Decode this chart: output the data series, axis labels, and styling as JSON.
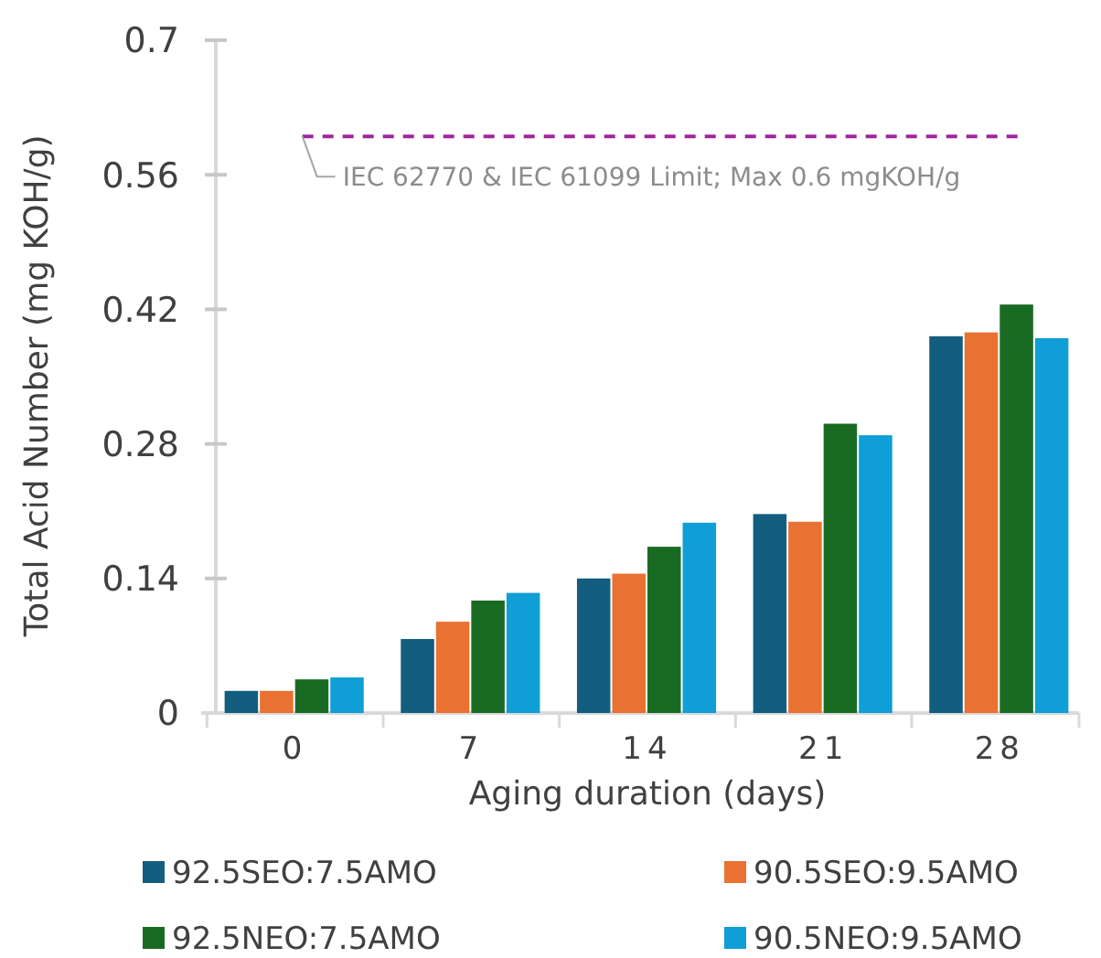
{
  "chart_data": {
    "type": "bar",
    "xlabel": "Aging duration (days)",
    "ylabel": "Total Acid Number (mg KOH/g)",
    "categories": [
      "0",
      "7",
      "14",
      "21",
      "28"
    ],
    "series": [
      {
        "name": "92.5SEO:7.5AMO",
        "color": "#135e7f",
        "values": [
          0.023,
          0.077,
          0.14,
          0.207,
          0.392
        ]
      },
      {
        "name": "90.5SEO:9.5AMO",
        "color": "#e97132",
        "values": [
          0.023,
          0.095,
          0.145,
          0.199,
          0.396
        ]
      },
      {
        "name": "92.5NEO:7.5AMO",
        "color": "#196b24",
        "values": [
          0.035,
          0.117,
          0.173,
          0.301,
          0.425
        ]
      },
      {
        "name": "90.5NEO:9.5AMO",
        "color": "#0f9ed5",
        "values": [
          0.037,
          0.125,
          0.198,
          0.289,
          0.39
        ]
      }
    ],
    "ylim": [
      0,
      0.7
    ],
    "yticks": [
      0,
      0.14,
      0.28,
      0.42,
      0.56,
      0.7
    ],
    "ref_lines": [
      {
        "axis": "y",
        "value": 0.6,
        "label": "IEC 62770 & IEC 61099 Limit; Max 0.6 mgKOH/g",
        "color": "#a0269a",
        "line_style": "dashed"
      }
    ],
    "grid": false,
    "legend": "bottom"
  }
}
